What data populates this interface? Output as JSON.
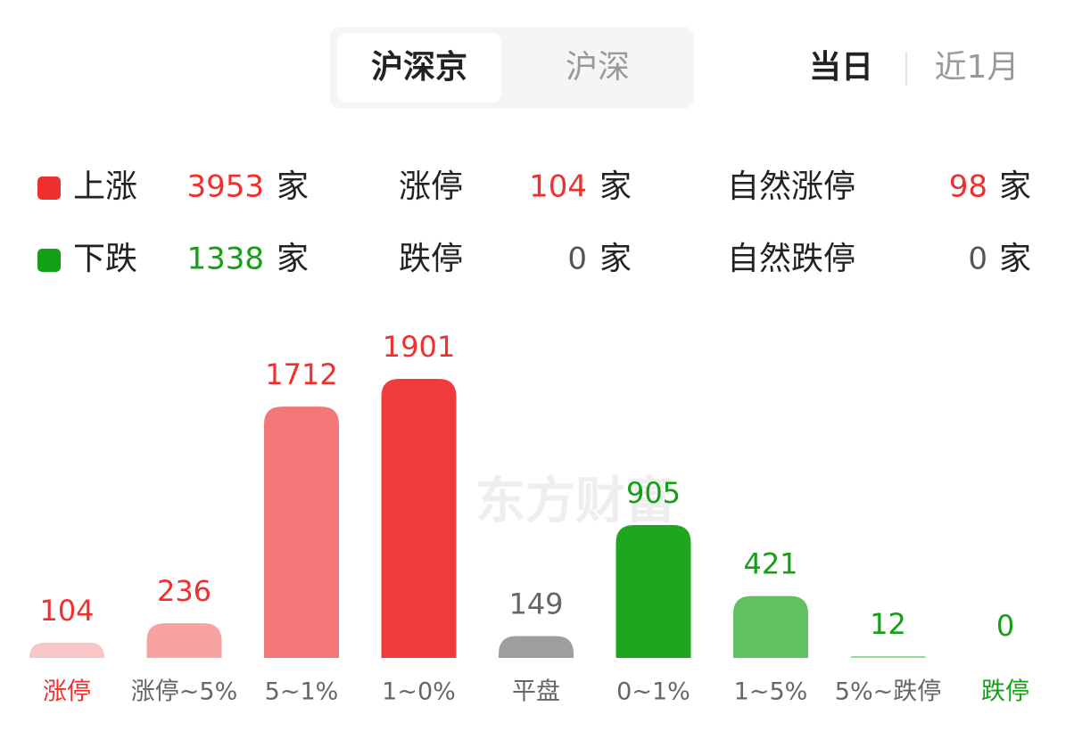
{
  "tabs": {
    "market": [
      "沪深京",
      "沪深"
    ],
    "market_active": 0,
    "period": [
      "当日",
      "近1月"
    ],
    "period_active": 0
  },
  "stats": {
    "unit": "家",
    "rows": [
      {
        "name": "上涨",
        "color": "#f02f2f",
        "value": 3953,
        "items": [
          {
            "name": "涨停",
            "value": 104
          },
          {
            "name": "自然涨停",
            "value": 98
          }
        ]
      },
      {
        "name": "下跌",
        "color": "#14a014",
        "value": 1338,
        "items": [
          {
            "name": "跌停",
            "value": 0
          },
          {
            "name": "自然跌停",
            "value": 0
          }
        ]
      }
    ]
  },
  "watermark": "东方财富",
  "chart_data": {
    "type": "bar",
    "categories": [
      "涨停",
      "涨停~5%",
      "5~1%",
      "1~0%",
      "平盘",
      "0~1%",
      "1~5%",
      "5%~跌停",
      "跌停"
    ],
    "values": [
      104,
      236,
      1712,
      1901,
      149,
      905,
      421,
      12,
      0
    ],
    "colors": [
      "#f9c6c7",
      "#f6a3a2",
      "#f47778",
      "#f03a3b",
      "#9e9e9e",
      "#1fa61f",
      "#5fc25f",
      "#93d993",
      "#93d993"
    ],
    "value_label_colors": [
      "#f02f2f",
      "#f02f2f",
      "#f02f2f",
      "#f02f2f",
      "#666666",
      "#14a014",
      "#14a014",
      "#14a014",
      "#14a014"
    ],
    "category_label_colors": [
      "#f02f2f",
      "#666666",
      "#666666",
      "#666666",
      "#666666",
      "#666666",
      "#666666",
      "#666666",
      "#14a014"
    ]
  }
}
